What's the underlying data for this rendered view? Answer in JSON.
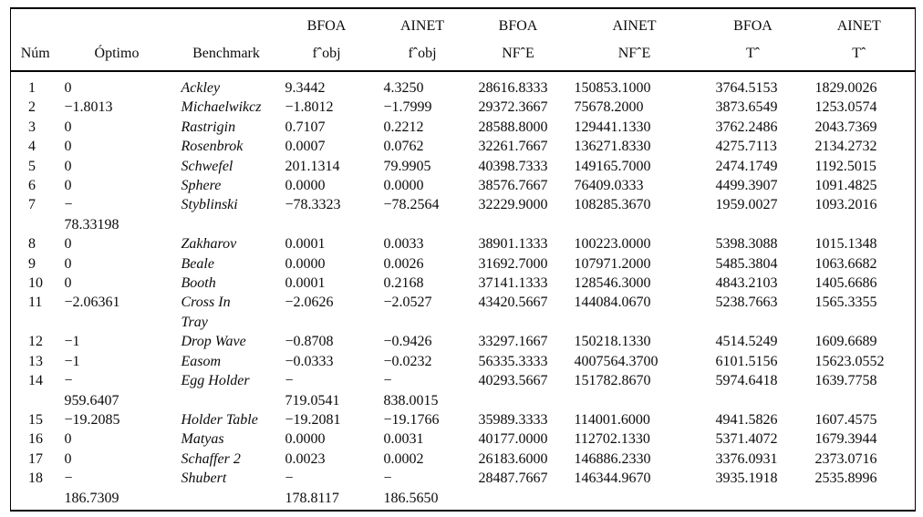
{
  "colors": {
    "background": "#ffffff",
    "text": "#0b0b0b",
    "rule": "#000000"
  },
  "table": {
    "column_keys": [
      "num",
      "optimo",
      "benchmark",
      "bfoa-fobj",
      "ainet-fobj",
      "bfoa-nfe",
      "ainet-nfe",
      "bfoa-t",
      "ainet-t"
    ],
    "header_top": [
      "",
      "",
      "",
      "BFOA",
      "AINET",
      "BFOA",
      "AINET",
      "BFOA",
      "AINET"
    ],
    "header_bottom": [
      "Núm",
      "Óptimo",
      "Benchmark",
      "fˆobj",
      "fˆobj",
      "NFˆE",
      "NFˆE",
      "Tˆ",
      "Tˆ"
    ],
    "rows": [
      [
        "1",
        "0",
        "Ackley",
        "9.3442",
        "4.3250",
        "28616.8333",
        "150853.1000",
        "3764.5153",
        "1829.0026"
      ],
      [
        "2",
        "−1.8013",
        "Michaelwikcz",
        "−1.8012",
        "−1.7999",
        "29372.3667",
        "75678.2000",
        "3873.6549",
        "1253.0574"
      ],
      [
        "3",
        "0",
        "Rastrigin",
        "0.7107",
        "0.2212",
        "28588.8000",
        "129441.1330",
        "3762.2486",
        "2043.7369"
      ],
      [
        "4",
        "0",
        "Rosenbrok",
        "0.0007",
        "0.0762",
        "32261.7667",
        "136271.8330",
        "4275.7113",
        "2134.2732"
      ],
      [
        "5",
        "0",
        "Schwefel",
        "201.1314",
        "79.9905",
        "40398.7333",
        "149165.7000",
        "2474.1749",
        "1192.5015"
      ],
      [
        "6",
        "0",
        "Sphere",
        "0.0000",
        "0.0000",
        "38576.7667",
        "76409.0333",
        "4499.3907",
        "1091.4825"
      ],
      [
        "7",
        "−\n78.33198",
        "Styblinski",
        "−78.3323",
        "−78.2564",
        "32229.9000",
        "108285.3670",
        "1959.0027",
        "1093.2016"
      ],
      [
        "8",
        "0",
        "Zakharov",
        "0.0001",
        "0.0033",
        "38901.1333",
        "100223.0000",
        "5398.3088",
        "1015.1348"
      ],
      [
        "9",
        "0",
        "Beale",
        "0.0000",
        "0.0026",
        "31692.7000",
        "107971.2000",
        "5485.3804",
        "1063.6682"
      ],
      [
        "10",
        "0",
        "Booth",
        "0.0001",
        "0.2168",
        "37141.1333",
        "128546.3000",
        "4843.2103",
        "1405.6686"
      ],
      [
        "11",
        "−2.06361",
        "Cross In\nTray",
        "−2.0626",
        "−2.0527",
        "43420.5667",
        "144084.0670",
        "5238.7663",
        "1565.3355"
      ],
      [
        "12",
        "−1",
        "Drop Wave",
        "−0.8708",
        "−0.9426",
        "33297.1667",
        "150218.1330",
        "4514.5249",
        "1609.6689"
      ],
      [
        "13",
        "−1",
        "Easom",
        "−0.0333",
        "−0.0232",
        "56335.3333",
        "4007564.3700",
        "6101.5156",
        "15623.0552"
      ],
      [
        "14",
        "−\n959.6407",
        "Egg Holder",
        "−\n719.0541",
        "−\n838.0015",
        "40293.5667",
        "151782.8670",
        "5974.6418",
        "1639.7758"
      ],
      [
        "15",
        "−19.2085",
        "Holder Table",
        "−19.2081",
        "−19.1766",
        "35989.3333",
        "114001.6000",
        "4941.5826",
        "1607.4575"
      ],
      [
        "16",
        "0",
        "Matyas",
        "0.0000",
        "0.0031",
        "40177.0000",
        "112702.1330",
        "5371.4072",
        "1679.3944"
      ],
      [
        "17",
        "0",
        "Schaffer 2",
        "0.0023",
        "0.0002",
        "26183.6000",
        "146886.2330",
        "3376.0931",
        "2373.0716"
      ],
      [
        "18",
        "−\n186.7309",
        "Shubert",
        "−\n178.8117",
        "−\n186.5650",
        "28487.7667",
        "146344.9670",
        "3935.1918",
        "2535.8996"
      ]
    ]
  }
}
